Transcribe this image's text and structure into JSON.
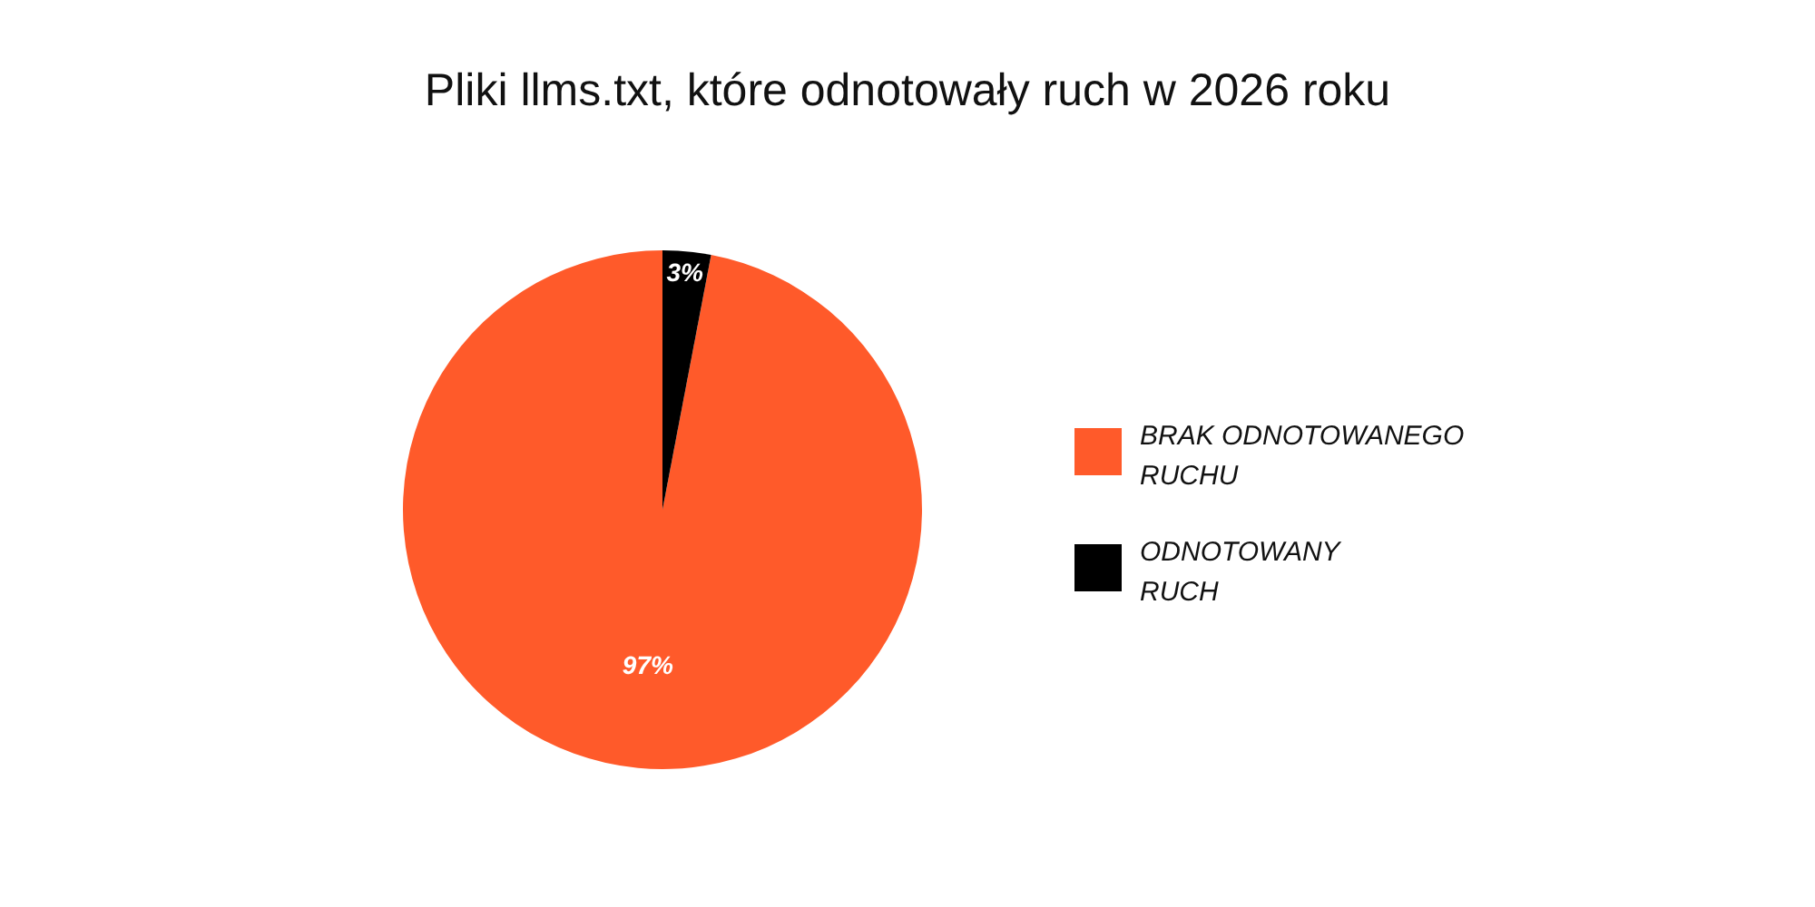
{
  "chart_data": {
    "type": "pie",
    "title": "Pliki llms.txt, które odnotowały ruch w 2026 roku",
    "categories": [
      "BRAK ODNOTOWANEGO RUCHU",
      "ODNOTOWANY RUCH"
    ],
    "values": [
      97,
      3
    ],
    "colors": [
      "#ff5a2a",
      "#000000"
    ],
    "value_labels": [
      "97%",
      "3%"
    ],
    "legend": "right"
  }
}
